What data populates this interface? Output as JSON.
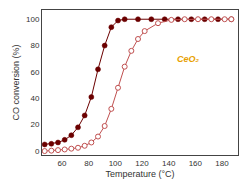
{
  "chart_data": {
    "type": "line",
    "xlabel": "Temperature (°C)",
    "ylabel": "CO conversion (%)",
    "xlim": [
      45,
      192
    ],
    "ylim": [
      -3,
      107
    ],
    "xticks": [
      60,
      80,
      100,
      120,
      140,
      160,
      180
    ],
    "yticks": [
      0,
      20,
      40,
      60,
      80,
      100
    ],
    "grid": false,
    "series": [
      {
        "x": [
          47,
          52,
          57,
          62,
          67,
          72,
          77,
          82,
          87,
          92,
          97,
          102,
          107,
          117,
          127,
          137,
          147,
          157,
          167,
          177,
          187
        ],
        "values": [
          5.0,
          5.5,
          6.5,
          8.5,
          12,
          18,
          27,
          41,
          62,
          80,
          94,
          99,
          100,
          100,
          100,
          100,
          100,
          100,
          100,
          100,
          100
        ],
        "color": "#6B0000",
        "marker": "circle"
      },
      {
        "x": [
          47,
          52,
          57,
          62,
          67,
          72,
          77,
          82,
          87,
          92,
          97,
          102,
          107,
          112,
          117,
          122,
          132,
          142,
          152,
          162,
          172,
          182,
          187
        ],
        "values": [
          0,
          0.3,
          0.7,
          1.2,
          1.8,
          2.5,
          4,
          6.5,
          11,
          19,
          32,
          48,
          64,
          76,
          85,
          91,
          97,
          99.5,
          100,
          100,
          100,
          100,
          100
        ],
        "color": "#C05050",
        "marker": "circle-open"
      }
    ],
    "annotations": [
      {
        "text": "CeO₂",
        "x": 155,
        "y": 70,
        "color": "#E8A000"
      }
    ]
  }
}
